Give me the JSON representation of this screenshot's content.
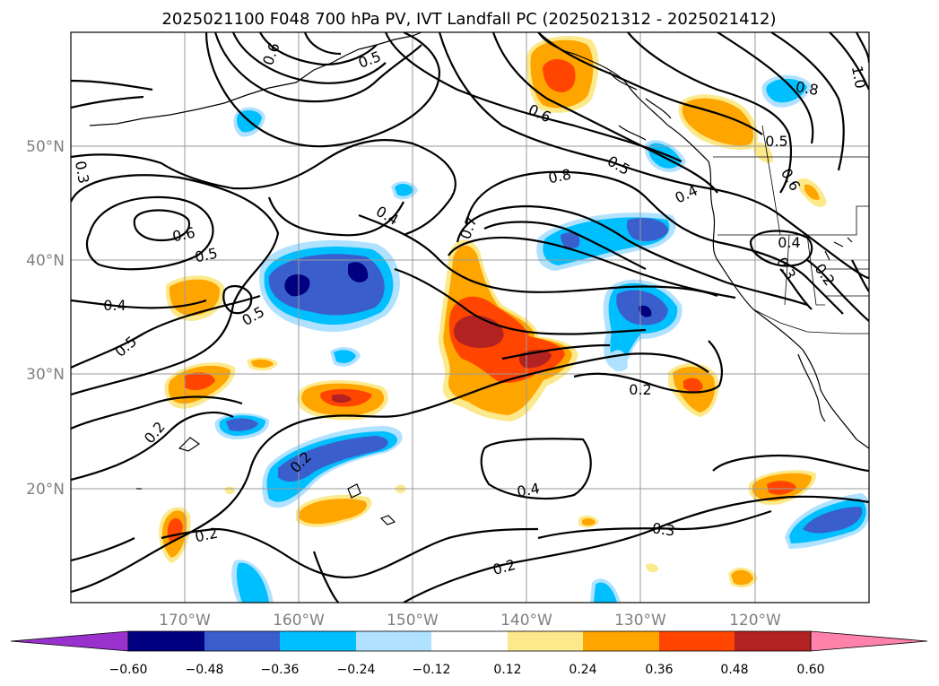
{
  "title": "2025021100 F048 700 hPa PV, IVT Landfall PC (2025021312 - 2025021412)",
  "lon_ticks": [
    "170°W",
    "160°W",
    "150°W",
    "140°W",
    "130°W",
    "120°W"
  ],
  "lat_ticks": [
    "50°N",
    "40°N",
    "30°N",
    "20°N"
  ],
  "colorbar": {
    "ticks": [
      "−0.60",
      "−0.48",
      "−0.36",
      "−0.24",
      "−0.12",
      "0.12",
      "0.24",
      "0.36",
      "0.48",
      "0.60"
    ],
    "colors": [
      "#9932cc",
      "#000080",
      "#3a5fcd",
      "#00bfff",
      "#b0e2ff",
      "#ffffff",
      "#fce98c",
      "#ffa500",
      "#ff4500",
      "#b22222",
      "#ff82ab"
    ]
  },
  "contour_labels": [
    "0.6",
    "0.5",
    "0.4",
    "0.5",
    "0.5",
    "0.3",
    "0.2",
    "0.2",
    "0.2",
    "0.4",
    "0.7",
    "0.8",
    "0.6",
    "0.5",
    "0.4",
    "0.8",
    "0.5",
    "0.6",
    "0.4",
    "0.3",
    "0.2",
    "1.0",
    "0.6",
    "0.2",
    "0.4",
    "0.3",
    "0.2",
    "0.5"
  ],
  "map": {
    "extent_lon": [
      -180,
      -110
    ],
    "extent_lat": [
      10,
      60
    ],
    "fill_colors": {
      "neg1": "#b0e2ff",
      "neg2": "#00bfff",
      "neg3": "#3a5fcd",
      "neg4": "#000080",
      "pos1": "#fce98c",
      "pos2": "#ffa500",
      "pos3": "#ff4500",
      "pos4": "#b22222"
    }
  }
}
